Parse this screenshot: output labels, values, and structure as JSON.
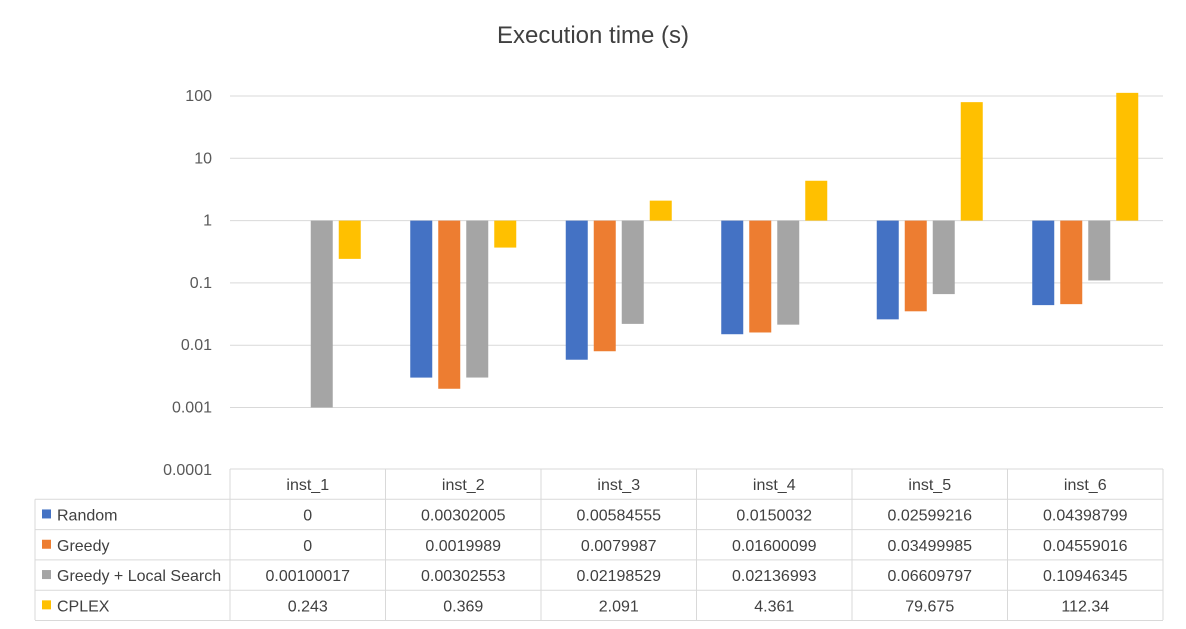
{
  "chart_data": {
    "type": "bar",
    "title": "Execution time (s)",
    "scale": "log",
    "ylim": [
      0.0001,
      100
    ],
    "baseline": 1,
    "y_ticks": [
      "100",
      "10",
      "1",
      "0.1",
      "0.01",
      "0.001",
      "0.0001"
    ],
    "y_tick_values": [
      100,
      10,
      1,
      0.1,
      0.01,
      0.001,
      0.0001
    ],
    "grid": true,
    "categories": [
      "inst_1",
      "inst_2",
      "inst_3",
      "inst_4",
      "inst_5",
      "inst_6"
    ],
    "series": [
      {
        "name": "Random",
        "color": "#4472C4",
        "values": [
          0,
          0.00302005,
          0.00584555,
          0.0150032,
          0.02599216,
          0.04398799
        ],
        "labels": [
          "0",
          "0.00302005",
          "0.00584555",
          "0.0150032",
          "0.02599216",
          "0.04398799"
        ]
      },
      {
        "name": "Greedy",
        "color": "#ED7D31",
        "values": [
          0,
          0.0019989,
          0.0079987,
          0.01600099,
          0.03499985,
          0.04559016
        ],
        "labels": [
          "0",
          "0.0019989",
          "0.0079987",
          "0.01600099",
          "0.03499985",
          "0.04559016"
        ]
      },
      {
        "name": "Greedy + Local Search",
        "color": "#A5A5A5",
        "values": [
          0.00100017,
          0.00302553,
          0.02198529,
          0.02136993,
          0.06609797,
          0.10946345
        ],
        "labels": [
          "0.00100017",
          "0.00302553",
          "0.02198529",
          "0.02136993",
          "0.06609797",
          "0.10946345"
        ]
      },
      {
        "name": "CPLEX",
        "color": "#FFC000",
        "values": [
          0.243,
          0.369,
          2.091,
          4.361,
          79.675,
          112.34
        ],
        "labels": [
          "0.243",
          "0.369",
          "2.091",
          "4.361",
          "79.675",
          "112.34"
        ]
      }
    ],
    "legend": "data-table"
  }
}
